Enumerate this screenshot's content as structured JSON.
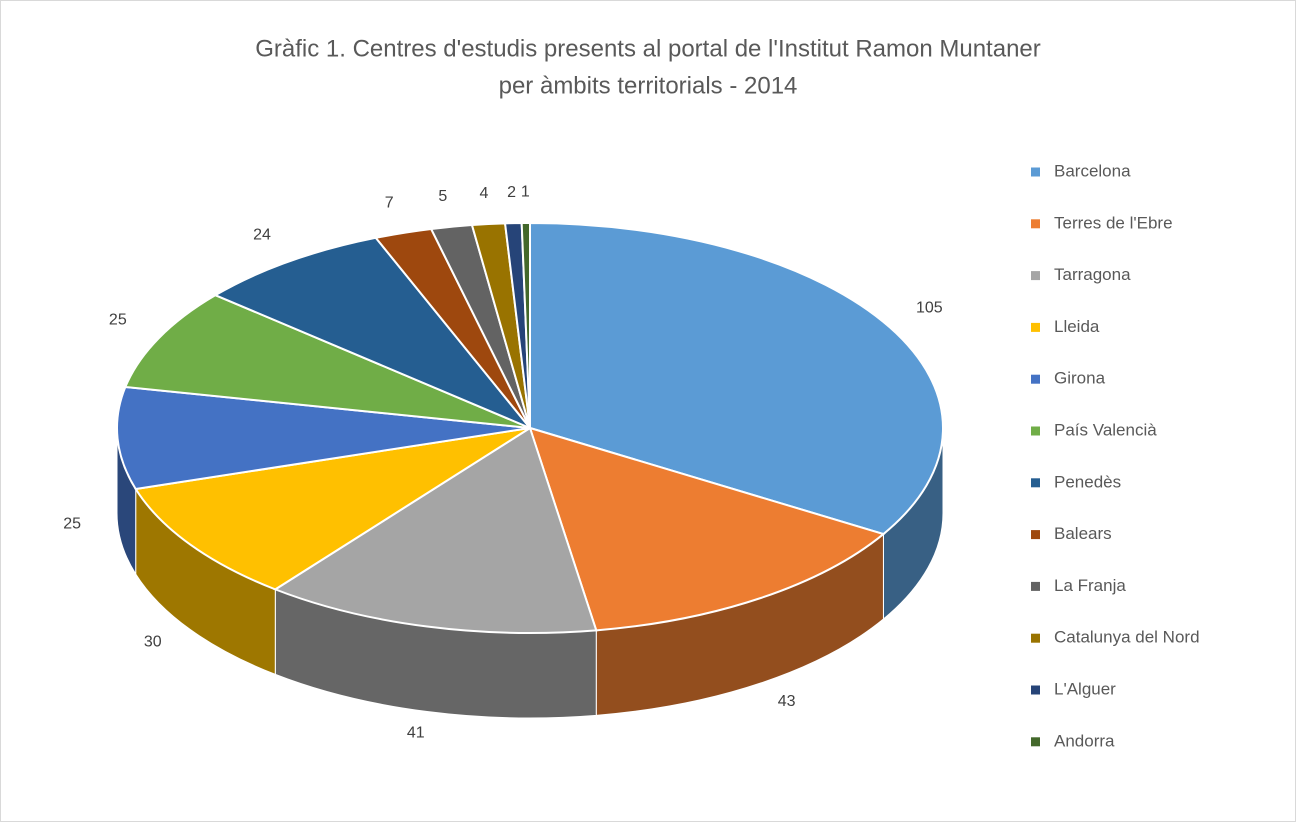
{
  "chart_data": {
    "type": "pie3d",
    "title": [
      "Gràfic 1. Centres d'estudis presents al portal de l'Institut Ramon Muntaner",
      "per àmbits territorials - 2014"
    ],
    "categories": [
      "Barcelona",
      "Terres de l'Ebre",
      "Tarragona",
      "Lleida",
      "Girona",
      "País Valencià",
      "Penedès",
      "Balears",
      "La Franja",
      "Catalunya del Nord",
      "L'Alguer",
      "Andorra"
    ],
    "values": [
      105,
      43,
      41,
      30,
      25,
      25,
      24,
      7,
      5,
      4,
      2,
      1
    ],
    "colors": [
      "#5b9bd5",
      "#ed7d31",
      "#a5a5a5",
      "#ffc000",
      "#4472c4",
      "#70ad47",
      "#255e91",
      "#9e480e",
      "#636363",
      "#997300",
      "#264478",
      "#43682b"
    ],
    "legend": "right"
  }
}
